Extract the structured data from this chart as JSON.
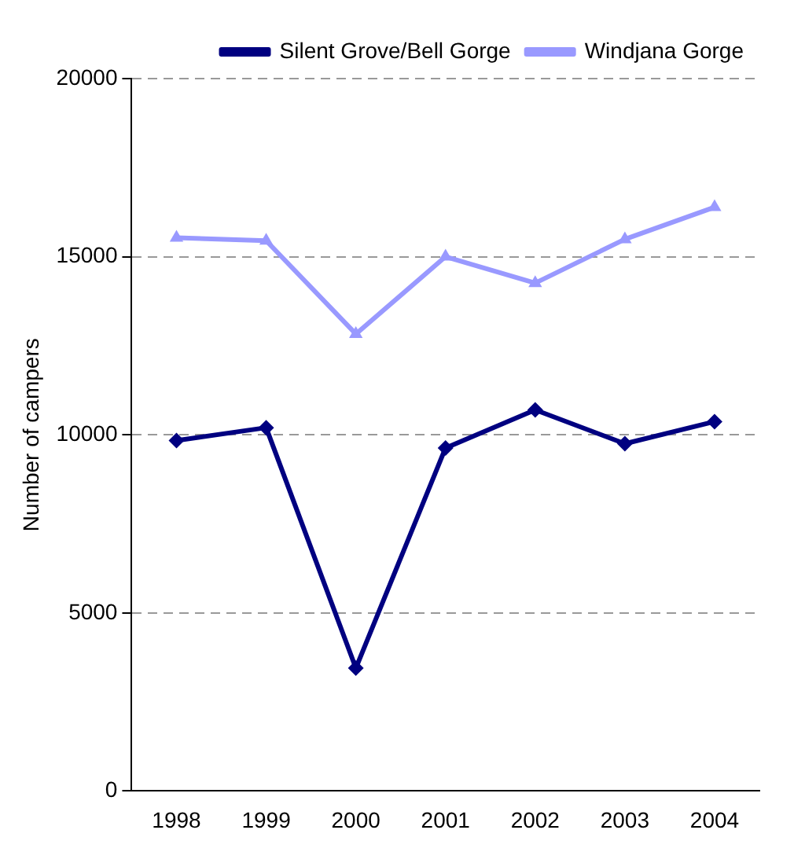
{
  "chart_data": {
    "type": "line",
    "ylabel": "Number of campers",
    "categories": [
      "1998",
      "1999",
      "2000",
      "2001",
      "2002",
      "2003",
      "2004"
    ],
    "series": [
      {
        "name": "Silent Grove/Bell Gorge",
        "color": "#000080",
        "marker": "diamond",
        "values": [
          9840,
          10200,
          3450,
          9630,
          10700,
          9750,
          10370
        ]
      },
      {
        "name": "Windjana Gorge",
        "color": "#9999ff",
        "marker": "triangle",
        "values": [
          15530,
          15450,
          12830,
          15000,
          14260,
          15490,
          16390
        ]
      }
    ],
    "ylim": [
      0,
      20000
    ],
    "yticks": [
      0,
      5000,
      10000,
      15000,
      20000
    ],
    "grid": "y",
    "legend": "top right",
    "line_style": "solid"
  }
}
